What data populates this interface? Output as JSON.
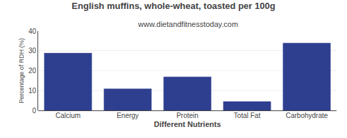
{
  "chart_data": {
    "type": "bar",
    "title": "English muffins, whole-wheat, toasted per 100g",
    "subtitle": "www.dietandfitnesstoday.com",
    "xlabel": "Different Nutrients",
    "ylabel": "Percentage of RDH (%)",
    "categories": [
      "Calcium",
      "Energy",
      "Protein",
      "Total Fat",
      "Carbohydrate"
    ],
    "values": [
      29,
      11,
      17,
      4.5,
      34
    ],
    "color": "#2e3f8f",
    "ylim": [
      0,
      40
    ],
    "yticks": [
      0,
      10,
      20,
      30,
      40
    ],
    "grid": true
  }
}
